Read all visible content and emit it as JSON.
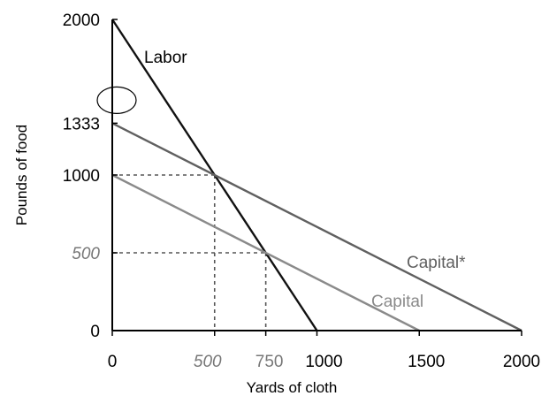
{
  "chart_data": {
    "type": "line",
    "xlabel": "Yards of cloth",
    "ylabel": "Pounds of food",
    "xlim": [
      0,
      2000
    ],
    "ylim": [
      0,
      2000
    ],
    "grid": false,
    "x_ticks": [
      {
        "value": 0,
        "label": "0",
        "style": "normal"
      },
      {
        "value": 500,
        "label": "500",
        "style": "italic-gray"
      },
      {
        "value": 750,
        "label": "750",
        "style": "gray"
      },
      {
        "value": 1000,
        "label": "1000",
        "style": "normal"
      },
      {
        "value": 1500,
        "label": "1500",
        "style": "normal"
      },
      {
        "value": 2000,
        "label": "2000",
        "style": "normal"
      }
    ],
    "y_ticks": [
      {
        "value": 0,
        "label": "0",
        "style": "normal"
      },
      {
        "value": 500,
        "label": "500",
        "style": "italic-gray"
      },
      {
        "value": 1000,
        "label": "1000",
        "style": "normal"
      },
      {
        "value": 1333,
        "label": "1333",
        "style": "normal"
      },
      {
        "value": 2000,
        "label": "2000",
        "style": "normal"
      }
    ],
    "series": [
      {
        "name": "Labor",
        "color": "#111111",
        "points": [
          [
            0,
            2000
          ],
          [
            1000,
            0
          ]
        ]
      },
      {
        "name": "Capital*",
        "color": "#606060",
        "points": [
          [
            0,
            1333
          ],
          [
            2000,
            0
          ]
        ]
      },
      {
        "name": "Capital",
        "color": "#8a8a8a",
        "points": [
          [
            0,
            1000
          ],
          [
            1500,
            0
          ]
        ]
      }
    ],
    "reference_points": [
      {
        "x": 500,
        "y": 1000
      },
      {
        "x": 750,
        "y": 500
      }
    ],
    "highlight_ellipse_y": 1333
  }
}
